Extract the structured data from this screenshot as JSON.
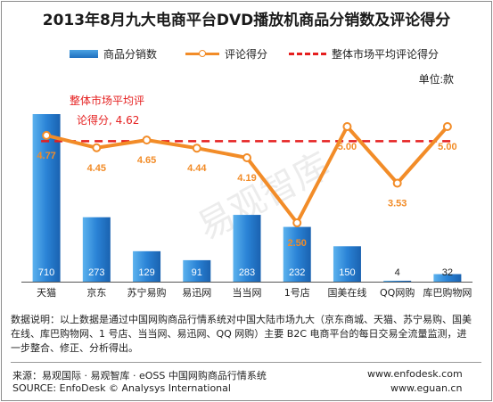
{
  "title": "2013年8月九大电商平台DVD播放机商品分销数及评论得分",
  "legend": {
    "bars": "商品分销数",
    "line": "评论得分",
    "avg": "整体市场平均评论得分"
  },
  "unit_label": "单位:款",
  "colors": {
    "bar": "#2a7fd0",
    "line": "#f28c28",
    "avg": "#e51f1f",
    "line_label": "#f28c28"
  },
  "chart_data": {
    "type": "bar",
    "categories": [
      "天猫",
      "京东",
      "苏宁易购",
      "易迅网",
      "当当网",
      "1号店",
      "国美在线",
      "QQ网购",
      "库巴购物网"
    ],
    "series": [
      {
        "name": "商品分销数",
        "type": "bar",
        "values": [
          710,
          273,
          129,
          91,
          283,
          232,
          150,
          4,
          32
        ]
      },
      {
        "name": "评论得分",
        "type": "line",
        "values": [
          4.77,
          4.45,
          4.65,
          4.44,
          4.19,
          2.5,
          5.0,
          3.53,
          5.0
        ]
      },
      {
        "name": "整体市场平均评论得分",
        "type": "line",
        "values": [
          4.62,
          4.62,
          4.62,
          4.62,
          4.62,
          4.62,
          4.62,
          4.62,
          4.62
        ]
      }
    ],
    "bar_labels": [
      "710",
      "273",
      "129",
      "91",
      "283",
      "232",
      "150",
      "4",
      "32"
    ],
    "line_labels": [
      "4.77",
      "4.45",
      "4.65",
      "4.44",
      "4.19",
      "2.50",
      "5.00",
      "3.53",
      "5.00"
    ],
    "annotation": {
      "line1": "整体市场平均评",
      "line2": "论得分, 4.62"
    },
    "bar_ylim": [
      0,
      1000
    ],
    "line_ylim": [
      0,
      5.75
    ],
    "grid": false,
    "legend_position": "top"
  },
  "watermark": "易观智库",
  "note": "数据说明：以上数据是通过中国网购商品行情系统对中国大陆市场九大（京东商城、天猫、苏宁易购、国美在线、库巴购物网、1 号店、当当网、易迅网、QQ 网购）主要 B2C 电商平台的每日交易全流量监测，进一步整合、修正、分析得出。",
  "source": {
    "cn": "来源：易观国际 · 易观智库 · eOSS 中国网购商品行情系统",
    "en": "SOURCE: EnfoDesk © Analysys International",
    "url1": "www.enfodesk.com",
    "url2": "www.eguan.cn"
  }
}
